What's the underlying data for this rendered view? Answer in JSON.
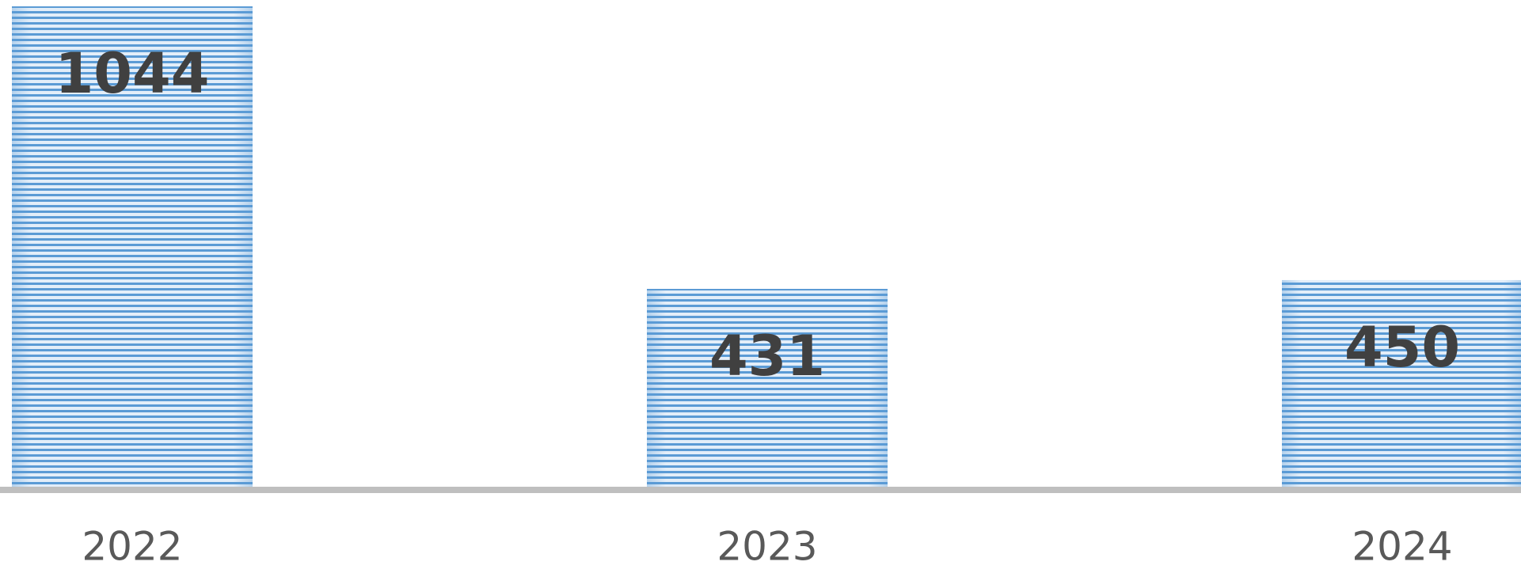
{
  "chart_data": {
    "type": "bar",
    "categories": [
      "2022",
      "2023",
      "2024"
    ],
    "values": [
      1044,
      431,
      450
    ],
    "color": "#5b9bd5"
  }
}
